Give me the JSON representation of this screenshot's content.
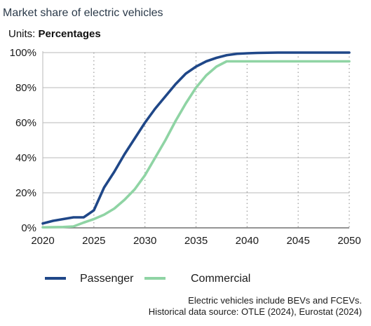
{
  "chart_data": {
    "type": "line",
    "title": "Market share of electric vehicles",
    "units_label": "Units: ",
    "units_value": "Percentages",
    "x": [
      2020,
      2021,
      2022,
      2023,
      2024,
      2025,
      2026,
      2027,
      2028,
      2029,
      2030,
      2031,
      2032,
      2033,
      2034,
      2035,
      2036,
      2037,
      2038,
      2039,
      2040,
      2041,
      2042,
      2043,
      2044,
      2045,
      2046,
      2047,
      2048,
      2049,
      2050
    ],
    "series": [
      {
        "name": "Passenger",
        "color": "#1f4788",
        "values": [
          2.5,
          4,
          5,
          6,
          6,
          10,
          23,
          32,
          42,
          51,
          60,
          68,
          75,
          82,
          88,
          92,
          95,
          97,
          98.5,
          99.3,
          99.6,
          99.8,
          99.9,
          100,
          100,
          100,
          100,
          100,
          100,
          100,
          100
        ]
      },
      {
        "name": "Commercial",
        "color": "#8fd4a4",
        "values": [
          0.3,
          0.4,
          0.5,
          0.8,
          3,
          5,
          7.5,
          11,
          16,
          22,
          30,
          40,
          50,
          61,
          71,
          80,
          87,
          92,
          95,
          95,
          95,
          95,
          95,
          95,
          95,
          95,
          95,
          95,
          95,
          95,
          95
        ]
      }
    ],
    "xlim": [
      2020,
      2050
    ],
    "ylim": [
      0,
      100
    ],
    "xticks": [
      "2020",
      "2025",
      "2030",
      "2035",
      "2040",
      "2045",
      "2050"
    ],
    "yticks": [
      "0%",
      "20%",
      "40%",
      "60%",
      "80%",
      "100%"
    ],
    "legend_position": "bottom",
    "grid": "horizontal solid, vertical dotted",
    "notes": [
      "Electric vehicles include BEVs and FCEVs.",
      "Historical data source: OTLE (2024), Eurostat (2024)"
    ]
  }
}
